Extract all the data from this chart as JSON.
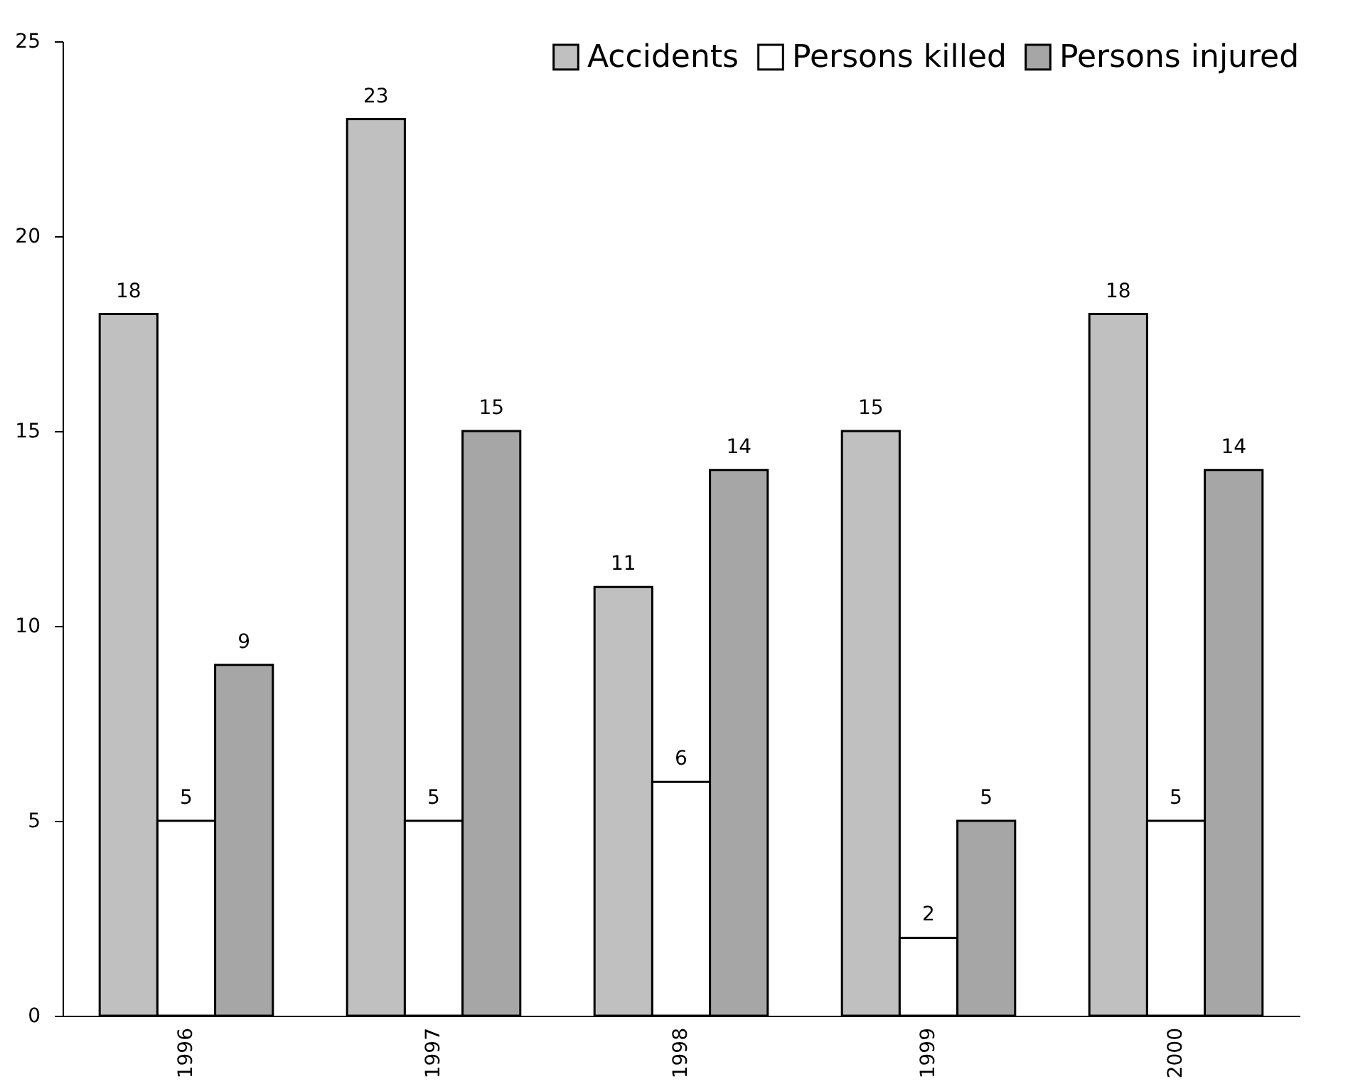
{
  "chart_data": {
    "type": "bar",
    "categories": [
      "1996",
      "1997",
      "1998",
      "1999",
      "2000"
    ],
    "series": [
      {
        "name": "Accidents",
        "color": "#c0c0c0",
        "values": [
          18,
          23,
          11,
          15,
          18
        ]
      },
      {
        "name": "Persons killed",
        "color": "#ffffff",
        "values": [
          5,
          5,
          6,
          2,
          5
        ]
      },
      {
        "name": "Persons injured",
        "color": "#a6a6a6",
        "values": [
          9,
          15,
          14,
          5,
          14
        ]
      }
    ],
    "ylim": [
      0,
      25
    ],
    "yticks": [
      0,
      5,
      10,
      15,
      20,
      25
    ],
    "grid": false,
    "legend": "top right",
    "data_labels": true
  }
}
